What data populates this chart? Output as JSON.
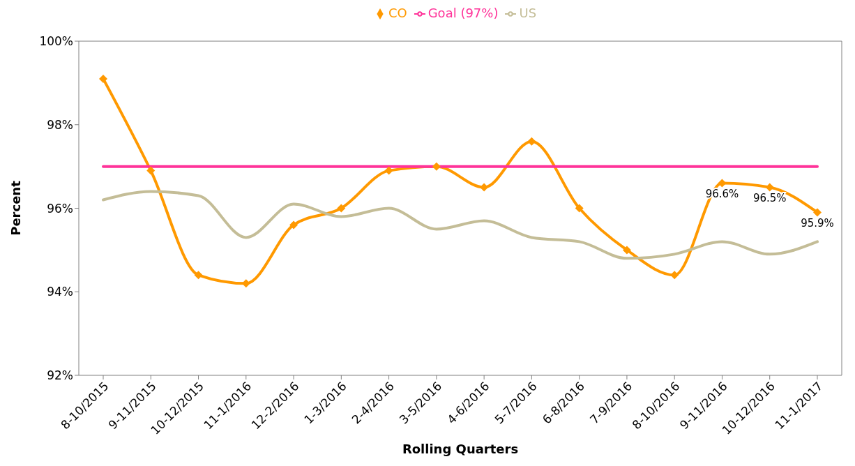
{
  "chart_data": {
    "type": "line",
    "xlabel": "Rolling Quarters",
    "ylabel": "Percent",
    "categories": [
      "8-10/2015",
      "9-11/2015",
      "10-12/2015",
      "11-1/2016",
      "12-2/2016",
      "1-3/2016",
      "2-4/2016",
      "3-5/2016",
      "4-6/2016",
      "5-7/2016",
      "6-8/2016",
      "7-9/2016",
      "8-10/2016",
      "9-11/2016",
      "10-12/2016",
      "11-1/2017"
    ],
    "series": [
      {
        "name": "CO",
        "color": "#ff9900",
        "marker": "diamond",
        "values": [
          99.1,
          96.9,
          94.4,
          94.2,
          95.6,
          96.0,
          96.9,
          97.0,
          96.5,
          97.6,
          96.0,
          95.0,
          94.4,
          96.6,
          96.5,
          95.9
        ],
        "value_labels": [
          null,
          null,
          null,
          null,
          null,
          null,
          null,
          null,
          null,
          null,
          null,
          null,
          null,
          "96.6%",
          "96.5%",
          "95.9%"
        ]
      },
      {
        "name": "US",
        "color": "#c4bd97",
        "marker": "none",
        "values": [
          96.2,
          96.4,
          96.3,
          95.3,
          96.1,
          95.8,
          96.0,
          95.5,
          95.7,
          95.3,
          95.2,
          94.8,
          94.9,
          95.2,
          94.9,
          95.2
        ]
      },
      {
        "name": "Goal (97%)",
        "color": "#ff3399",
        "marker": "none",
        "values": [
          97,
          97,
          97,
          97,
          97,
          97,
          97,
          97,
          97,
          97,
          97,
          97,
          97,
          97,
          97,
          97
        ]
      }
    ],
    "ylim": [
      92,
      100
    ],
    "yticks": [
      {
        "value": 92,
        "label": "92%"
      },
      {
        "value": 94,
        "label": "94%"
      },
      {
        "value": 96,
        "label": "96%"
      },
      {
        "value": 98,
        "label": "98%"
      },
      {
        "value": 100,
        "label": "100%"
      }
    ],
    "grid": false,
    "legend": "top"
  }
}
